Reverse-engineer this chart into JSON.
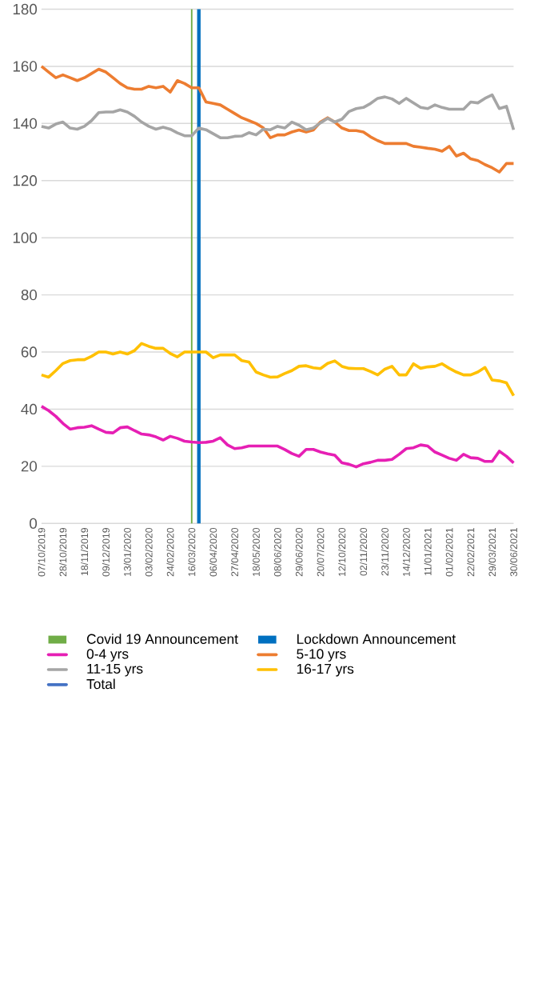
{
  "chart_data": {
    "type": "line",
    "categories": [
      "07/10/2019",
      null,
      null,
      "28/10/2019",
      null,
      null,
      "18/11/2019",
      null,
      null,
      "09/12/2019",
      null,
      null,
      "13/01/2020",
      null,
      null,
      "03/02/2020",
      null,
      null,
      "24/02/2020",
      null,
      null,
      "16/03/2020",
      null,
      null,
      "06/04/2020",
      null,
      null,
      "27/04/2020",
      null,
      null,
      "18/05/2020",
      null,
      null,
      "08/06/2020",
      null,
      null,
      "29/06/2020",
      null,
      null,
      "20/07/2020",
      null,
      null,
      "12/10/2020",
      null,
      null,
      "02/11/2020",
      null,
      null,
      "23/11/2020",
      null,
      null,
      "14/12/2020",
      null,
      null,
      "11/01/2021",
      null,
      null,
      "01/02/2021",
      null,
      null,
      "22/02/2021",
      null,
      null,
      "29/03/2021",
      null,
      null,
      "30/06/2021"
    ],
    "series": [
      {
        "name": "Covid 19 Announcement",
        "type": "bar",
        "color": "#70ad47",
        "values": [
          null,
          null,
          null,
          null,
          null,
          null,
          null,
          null,
          null,
          null,
          null,
          null,
          null,
          null,
          null,
          null,
          null,
          null,
          null,
          null,
          null,
          180,
          null,
          null,
          null,
          null,
          null,
          null,
          null,
          null,
          null,
          null,
          null,
          null,
          null,
          null,
          null,
          null,
          null,
          null,
          null,
          null,
          null,
          null,
          null,
          null,
          null,
          null,
          null,
          null,
          null,
          null,
          null,
          null,
          null,
          null,
          null,
          null,
          null,
          null,
          null,
          null,
          null,
          null,
          null,
          null,
          null
        ]
      },
      {
        "name": "Lockdown Announcement",
        "type": "bar",
        "color": "#0070c0",
        "values": [
          null,
          null,
          null,
          null,
          null,
          null,
          null,
          null,
          null,
          null,
          null,
          null,
          null,
          null,
          null,
          null,
          null,
          null,
          null,
          null,
          null,
          null,
          180,
          null,
          null,
          null,
          null,
          null,
          null,
          null,
          null,
          null,
          null,
          null,
          null,
          null,
          null,
          null,
          null,
          null,
          null,
          null,
          null,
          null,
          null,
          null,
          null,
          null,
          null,
          null,
          null,
          null,
          null,
          null,
          null,
          null,
          null,
          null,
          null,
          null,
          null,
          null,
          null,
          null,
          null,
          null,
          null
        ]
      },
      {
        "name": "0-4 yrs",
        "color": "#e61fb4",
        "values": [
          41,
          39.5,
          37.5,
          35,
          33,
          33.5,
          33.7,
          34.2,
          33,
          31.9,
          31.7,
          33.5,
          33.8,
          32.5,
          31.3,
          31,
          30.3,
          29.2,
          30.5,
          29.8,
          28.8,
          28.5,
          28.3,
          28.4,
          28.8,
          30,
          27.5,
          26.2,
          26.5,
          27.1,
          27.1,
          27.1,
          27.1,
          27.1,
          25.9,
          24.5,
          23.5,
          25.9,
          25.9,
          25,
          24.4,
          23.9,
          21.2,
          20.7,
          19.8,
          20.9,
          21.4,
          22.1,
          22.1,
          22.4,
          24.2,
          26.2,
          26.5,
          27.5,
          27.1,
          25,
          23.9,
          22.8,
          22.1,
          24.2,
          23,
          22.8,
          21.7,
          21.7,
          25.3,
          23.5,
          21.2
        ]
      },
      {
        "name": "5-10 yrs",
        "color": "#ed7d31",
        "values": [
          160,
          158,
          156,
          157,
          156,
          155,
          156,
          157.5,
          159,
          158,
          156,
          154,
          152.5,
          152,
          152,
          153,
          152.5,
          153,
          151,
          155,
          154,
          152.5,
          152.5,
          147.5,
          147,
          146.5,
          145,
          143.5,
          142,
          141,
          140,
          138.5,
          135,
          136,
          136,
          137,
          137.7,
          137,
          137.7,
          140.5,
          142,
          140.5,
          138.4,
          137.5,
          137.5,
          137,
          135.3,
          134,
          133,
          133,
          133,
          133,
          132,
          131.7,
          131.3,
          131,
          130.3,
          132,
          128.6,
          129.6,
          127.6,
          127,
          125.6,
          124.5,
          123,
          126,
          126
        ]
      },
      {
        "name": "11-15 yrs",
        "color": "#a5a5a5",
        "values": [
          139,
          138.4,
          139.8,
          140.5,
          138.4,
          138,
          139,
          141,
          143.8,
          144,
          144,
          144.8,
          144,
          142.5,
          140.5,
          139,
          138,
          138.7,
          138,
          136.7,
          135.7,
          135.7,
          138.4,
          137.8,
          136.4,
          135,
          135,
          135.5,
          135.6,
          136.8,
          136,
          138,
          137.8,
          139,
          138.4,
          140.5,
          139.4,
          137.8,
          138.4,
          140.2,
          141.8,
          140.5,
          141.5,
          144.2,
          145.2,
          145.6,
          147,
          148.8,
          149.3,
          148.6,
          147,
          148.8,
          147.2,
          145.6,
          145.2,
          146.5,
          145.6,
          145,
          145,
          145,
          147.5,
          147.2,
          148.8,
          150,
          145.2,
          146,
          137.8
        ]
      },
      {
        "name": "16-17 yrs",
        "color": "#ffc000",
        "values": [
          52,
          51.2,
          53.5,
          56,
          57,
          57.3,
          57.3,
          58.5,
          60,
          60,
          59.3,
          60,
          59.3,
          60.5,
          63,
          62,
          61.3,
          61.3,
          59.5,
          58.3,
          60,
          60,
          60,
          60,
          58,
          59,
          59,
          59,
          57,
          56.5,
          53,
          52,
          51.2,
          51.3,
          52.5,
          53.5,
          55,
          55.2,
          54.5,
          54.2,
          56,
          56.9,
          55,
          54.3,
          54.2,
          54.2,
          53.2,
          52,
          54,
          55,
          52,
          52,
          55.9,
          54.3,
          54.8,
          55,
          55.9,
          54.3,
          53,
          52,
          52,
          53,
          54.6,
          50.2,
          49.9,
          49.2,
          44.7
        ]
      },
      {
        "name": "Total",
        "color": "#4472c4",
        "values": [
          null,
          null,
          null,
          null,
          null,
          null,
          null,
          null,
          null,
          null,
          null,
          null,
          null,
          null,
          null,
          null,
          null,
          null,
          null,
          null,
          null,
          null,
          null,
          null,
          null,
          null,
          null,
          null,
          null,
          null,
          null,
          null,
          null,
          null,
          null,
          null,
          null,
          null,
          null,
          null,
          null,
          null,
          null,
          null,
          null,
          null,
          null,
          null,
          null,
          null,
          null,
          null,
          null,
          null,
          null,
          null,
          null,
          null,
          null,
          null,
          null,
          null,
          null,
          null,
          null,
          null,
          null
        ]
      }
    ],
    "ylim": [
      0,
      180
    ],
    "yticks": [
      0,
      20,
      40,
      60,
      80,
      100,
      120,
      140,
      160,
      180
    ],
    "grid": "y",
    "legend": "bottom",
    "line_style": "solid",
    "marker": "none"
  }
}
